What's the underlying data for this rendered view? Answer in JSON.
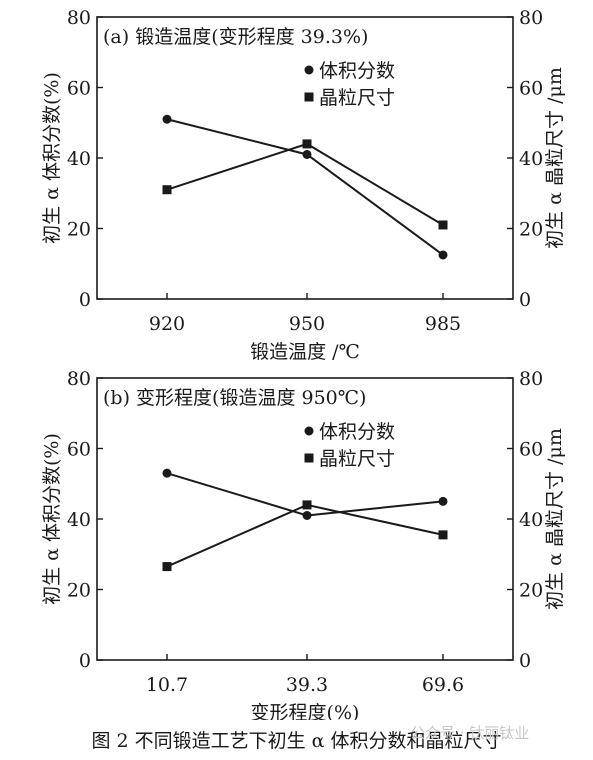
{
  "caption": "图 2  不同锻造工艺下初生 α 体积分数和晶粒尺寸",
  "watermark": "公众号 · 钛丽钛业",
  "chart_data": [
    {
      "type": "line",
      "title": "(a) 锻造温度(变形程度 39.3%)",
      "xlabel": "锻造温度 /℃",
      "ylabel_left": "初生 α 体积分数(%)",
      "ylabel_right": "初生 α 晶粒尺寸 /μm",
      "categories": [
        "920",
        "950",
        "985"
      ],
      "ylim_left": [
        0,
        80
      ],
      "ylim_right": [
        0,
        80
      ],
      "yticks": [
        0,
        20,
        40,
        60,
        80
      ],
      "grid": false,
      "legend_position": "top-center",
      "series": [
        {
          "name": "体积分数",
          "marker": "circle",
          "axis": "left",
          "values": [
            51,
            41,
            12.5
          ]
        },
        {
          "name": "晶粒尺寸",
          "marker": "square",
          "axis": "right",
          "values": [
            31,
            44,
            21
          ]
        }
      ]
    },
    {
      "type": "line",
      "title": "(b) 变形程度(锻造温度 950℃)",
      "xlabel": "变形程度(%)",
      "ylabel_left": "初生 α 体积分数(%)",
      "ylabel_right": "初生 α 晶粒尺寸 /μm",
      "categories": [
        "10.7",
        "39.3",
        "69.6"
      ],
      "ylim_left": [
        0,
        80
      ],
      "ylim_right": [
        0,
        80
      ],
      "yticks": [
        0,
        20,
        40,
        60,
        80
      ],
      "grid": false,
      "legend_position": "top-center",
      "series": [
        {
          "name": "体积分数",
          "marker": "circle",
          "axis": "left",
          "values": [
            53,
            41,
            45
          ]
        },
        {
          "name": "晶粒尺寸",
          "marker": "square",
          "axis": "right",
          "values": [
            26.5,
            44,
            35.5
          ]
        }
      ]
    }
  ]
}
